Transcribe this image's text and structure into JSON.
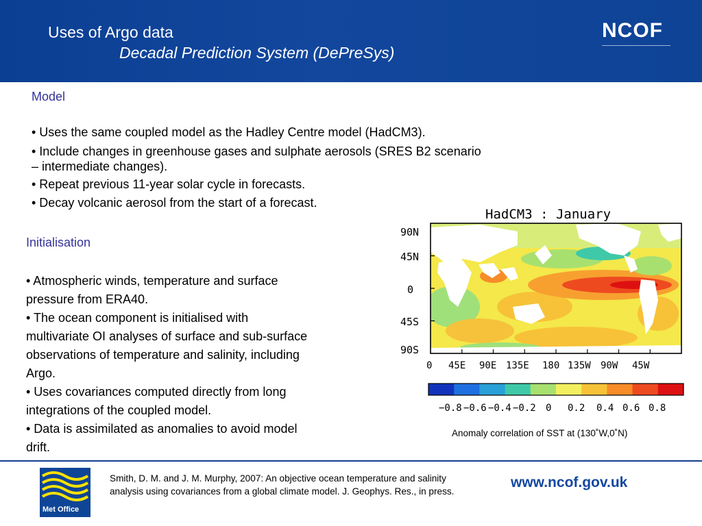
{
  "header": {
    "title": "Uses of Argo data",
    "subtitle": "Decadal Prediction System (DePreSys)",
    "logo": "NCOF"
  },
  "model": {
    "heading": "Model",
    "bullets": [
      "• Uses the same coupled model as the Hadley Centre model (HadCM3).",
      "• Include changes in greenhouse gases and sulphate aerosols (SRES B2 scenario",
      "– intermediate changes).",
      "• Repeat previous 11-year solar cycle in forecasts.",
      "• Decay volcanic aerosol from the start of a forecast."
    ]
  },
  "initialisation": {
    "heading": "Initialisation",
    "lines": [
      "• Atmospheric winds, temperature and surface",
      "pressure from ERA40.",
      "• The ocean component is initialised with",
      "multivariate OI analyses of surface and sub-surface",
      "observations of temperature and salinity, including",
      "Argo.",
      "• Uses covariances computed directly from long",
      "integrations of the coupled model.",
      "• Data is assimilated as anomalies to avoid model",
      "drift."
    ]
  },
  "map": {
    "title": "HadCM3 : January",
    "lat_labels": [
      "90N",
      "45N",
      "0",
      "45S",
      "90S"
    ],
    "lon_labels": [
      "0",
      "45E",
      "90E",
      "135E",
      "180",
      "135W",
      "90W",
      "45W"
    ],
    "colorbar_labels": [
      "−0.8",
      "−0.6",
      "−0.4",
      "−0.2",
      "0",
      "0.2",
      "0.4",
      "0.6",
      "0.8"
    ],
    "colorbar_colors": [
      "#1133bb",
      "#1e6fe0",
      "#2aa0d8",
      "#3fc9a8",
      "#a8e070",
      "#f2f060",
      "#f7c238",
      "#f78c28",
      "#ee4a20",
      "#dd1111"
    ],
    "caption": "Anomaly correlation of SST at (130˚W,0˚N)"
  },
  "footer": {
    "brand": "Met Office",
    "reference": "Smith, D. M. and J. M. Murphy, 2007: An objective ocean temperature and salinity analysis using covariances from a global climate model. J. Geophys. Res., in press.",
    "url": "www.ncof.gov.uk"
  }
}
